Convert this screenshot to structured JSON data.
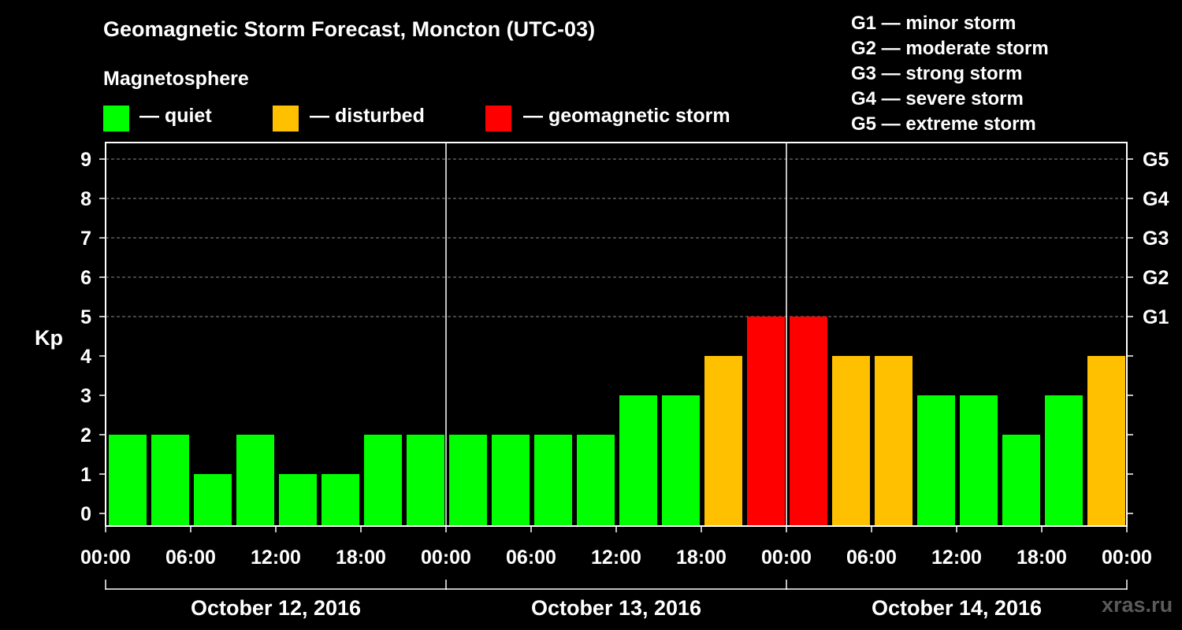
{
  "header": {
    "title": "Geomagnetic Storm Forecast, Moncton (UTC-03)",
    "subtitle": "Magnetosphere"
  },
  "legend": {
    "items": [
      {
        "label": "— quiet",
        "color": "#00ff00"
      },
      {
        "label": "— disturbed",
        "color": "#ffc000"
      },
      {
        "label": "— geomagnetic storm",
        "color": "#ff0000"
      }
    ]
  },
  "storm_scale": {
    "lines": [
      "G1 — minor storm",
      "G2 — moderate storm",
      "G3 — strong storm",
      "G4 — severe storm",
      "G5 — extreme storm"
    ]
  },
  "watermark": "xras.ru",
  "chart_data": {
    "type": "bar",
    "ylabel": "Kp",
    "ylim": [
      0,
      9
    ],
    "y_ticks": [
      "0",
      "1",
      "2",
      "3",
      "4",
      "5",
      "6",
      "7",
      "8",
      "9"
    ],
    "right_axis_labels": [
      {
        "kp": 5,
        "label": "G1"
      },
      {
        "kp": 6,
        "label": "G2"
      },
      {
        "kp": 7,
        "label": "G3"
      },
      {
        "kp": 8,
        "label": "G4"
      },
      {
        "kp": 9,
        "label": "G5"
      }
    ],
    "x_tick_labels": [
      "00:00",
      "06:00",
      "12:00",
      "18:00",
      "00:00",
      "06:00",
      "12:00",
      "18:00",
      "00:00",
      "06:00",
      "12:00",
      "18:00",
      "00:00"
    ],
    "days": [
      "October 12, 2016",
      "October 13, 2016",
      "October 14, 2016"
    ],
    "interval_hours": 3,
    "values": [
      2,
      2,
      1,
      2,
      1,
      1,
      2,
      2,
      2,
      2,
      2,
      2,
      3,
      3,
      4,
      5,
      5,
      4,
      4,
      3,
      3,
      2,
      3,
      4
    ],
    "colors": {
      "quiet": "#00ff00",
      "disturbed": "#ffc000",
      "storm": "#ff0000"
    },
    "grid": true
  }
}
